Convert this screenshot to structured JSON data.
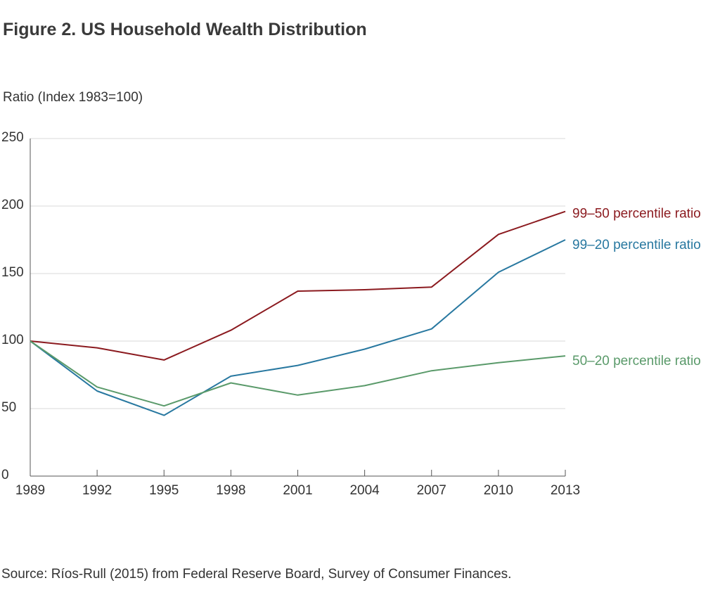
{
  "chart_data": {
    "type": "line",
    "title": "Figure 2. US Household Wealth Distribution",
    "ylabel": "Ratio (Index 1983=100)",
    "xlabel": "",
    "categories": [
      "1989",
      "1992",
      "1995",
      "1998",
      "2001",
      "2004",
      "2007",
      "2010",
      "2013"
    ],
    "ylim": [
      0,
      250
    ],
    "yticks": [
      0,
      50,
      100,
      150,
      200,
      250
    ],
    "grid": true,
    "series": [
      {
        "name": "99–50 percentile ratio",
        "color": "#8b1a1f",
        "values": [
          100,
          95,
          86,
          108,
          137,
          138,
          140,
          179,
          196
        ]
      },
      {
        "name": "99–20 percentile ratio",
        "color": "#2878a0",
        "values": [
          100,
          63,
          45,
          74,
          82,
          94,
          109,
          151,
          175
        ]
      },
      {
        "name": "50–20 percentile ratio",
        "color": "#5a9a6a",
        "values": [
          100,
          66,
          52,
          69,
          60,
          67,
          78,
          84,
          89
        ]
      }
    ],
    "source": "Source: Ríos-Rull (2015) from Federal Reserve Board, Survey of Consumer Finances."
  }
}
